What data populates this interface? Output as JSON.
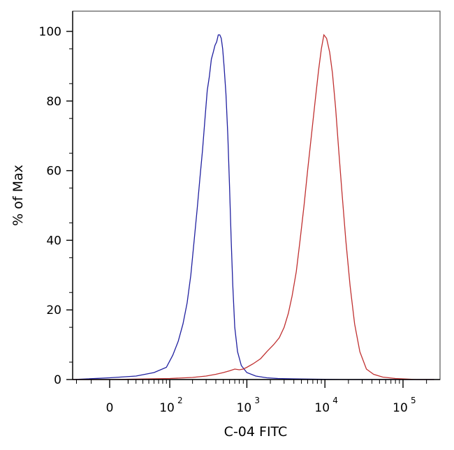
{
  "chart_data": {
    "type": "line",
    "title": "",
    "xlabel": "C-04 FITC",
    "ylabel": "% of Max",
    "x_scale": "biexponential",
    "x_ticks": [
      {
        "value": 0,
        "base": "0",
        "exp": ""
      },
      {
        "value": 100,
        "base": "10",
        "exp": "2"
      },
      {
        "value": 1000,
        "base": "10",
        "exp": "3"
      },
      {
        "value": 10000,
        "base": "10",
        "exp": "4"
      },
      {
        "value": 100000,
        "base": "10",
        "exp": "5"
      }
    ],
    "y_ticks": [
      0,
      20,
      40,
      60,
      80,
      100
    ],
    "ylim": [
      0,
      100
    ],
    "grid": false,
    "legend": "none",
    "series": [
      {
        "color": "#2020a0",
        "x": [
          -2000,
          0,
          30,
          60,
          90,
          110,
          130,
          150,
          170,
          190,
          210,
          230,
          250,
          270,
          290,
          310,
          330,
          350,
          370,
          390,
          410,
          430,
          450,
          470,
          490,
          510,
          540,
          570,
          600,
          630,
          660,
          700,
          760,
          850,
          1000,
          1300,
          1800,
          2500,
          4000,
          8000,
          20000,
          100000,
          250000
        ],
        "y": [
          0,
          0.5,
          1,
          2,
          3.5,
          7,
          11,
          16,
          22,
          30,
          40,
          49,
          58,
          66,
          75,
          83,
          87,
          92,
          94,
          96,
          97,
          99,
          99,
          98,
          95,
          90,
          82,
          70,
          55,
          40,
          27,
          15,
          8,
          4,
          2,
          1,
          0.5,
          0.3,
          0.2,
          0.1,
          0,
          0,
          0
        ]
      },
      {
        "color": "#c03030",
        "x": [
          -2000,
          0,
          100,
          200,
          300,
          400,
          500,
          600,
          700,
          800,
          900,
          1000,
          1200,
          1500,
          1800,
          2200,
          2600,
          3000,
          3400,
          3800,
          4300,
          4800,
          5400,
          6000,
          6700,
          7500,
          8300,
          9000,
          9700,
          10500,
          11500,
          12500,
          13700,
          15000,
          16500,
          18500,
          21000,
          24000,
          28000,
          34000,
          42000,
          55000,
          80000,
          150000,
          250000
        ],
        "y": [
          0,
          0,
          0.3,
          0.6,
          1,
          1.5,
          2,
          2.5,
          3,
          2.8,
          3,
          3.5,
          4.5,
          6,
          8,
          10,
          12,
          15,
          19,
          24,
          31,
          40,
          50,
          60,
          70,
          80,
          89,
          95,
          99,
          98,
          94,
          88,
          78,
          66,
          54,
          40,
          27,
          16,
          8,
          3,
          1.5,
          0.7,
          0.3,
          0,
          0
        ]
      }
    ]
  }
}
